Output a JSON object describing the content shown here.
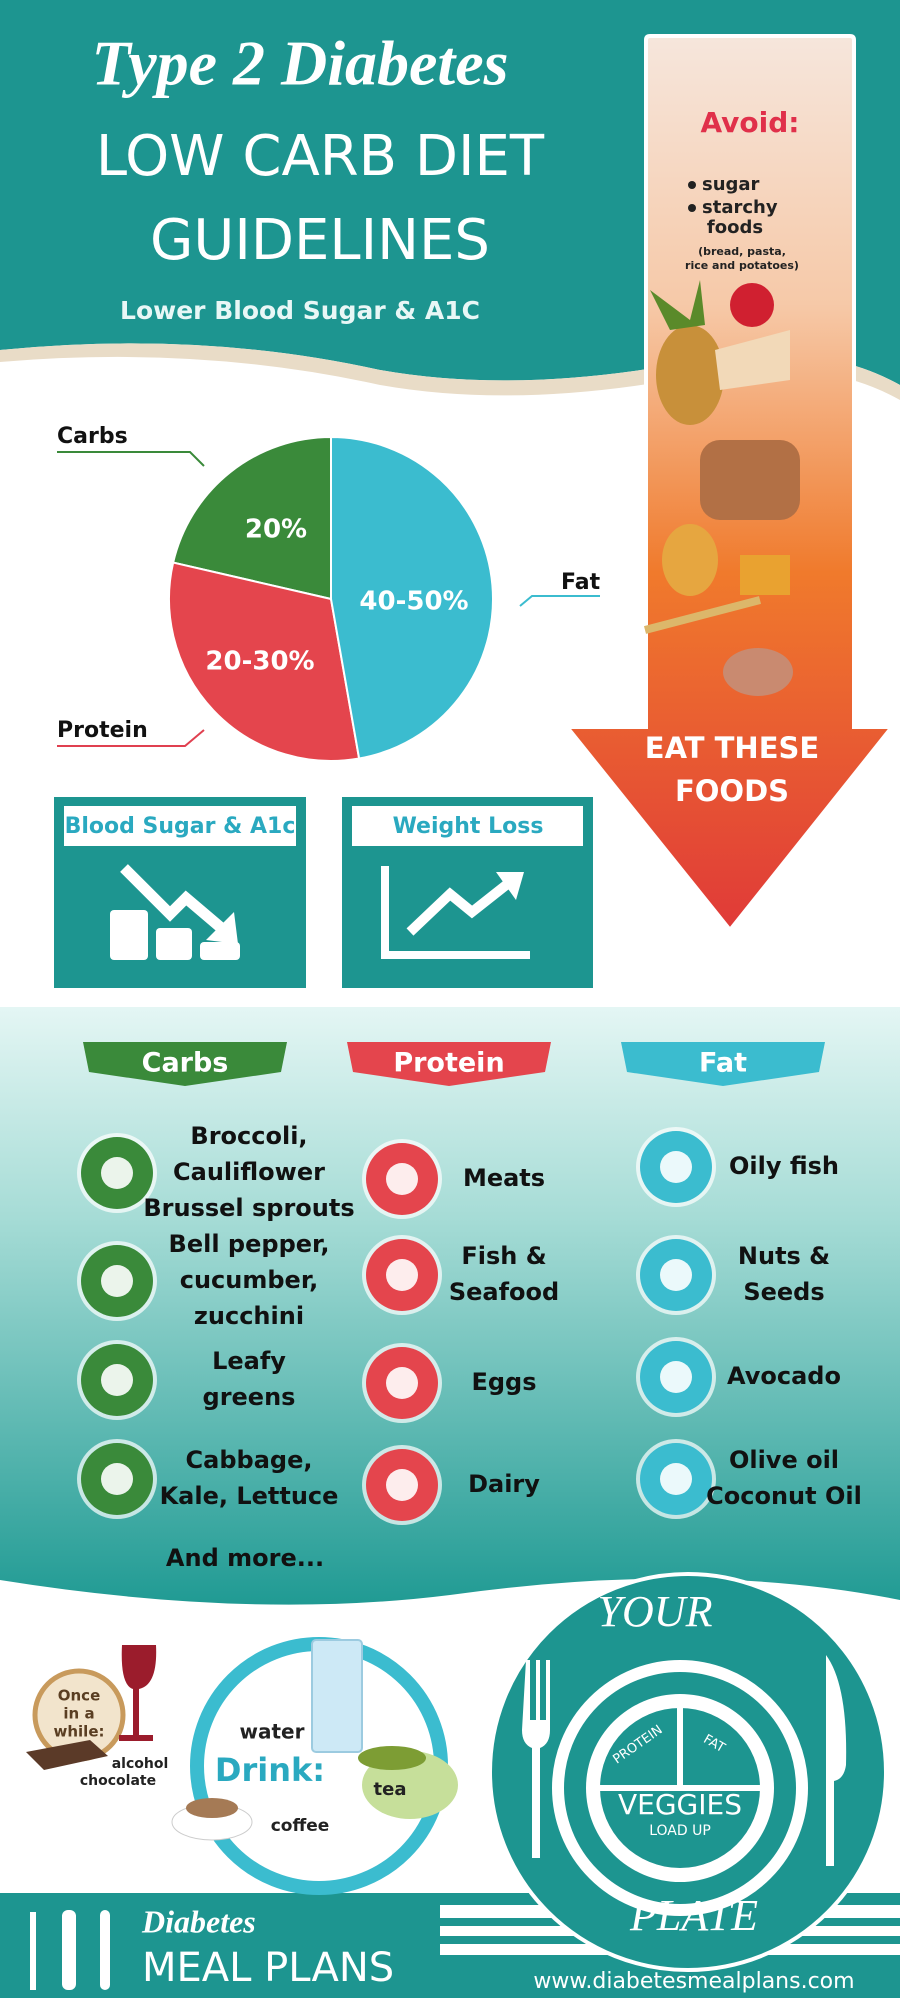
{
  "header": {
    "script_title": "Type 2 Diabetes",
    "title_lines": [
      "LOW CARB DIET",
      "GUIDELINES"
    ],
    "subtitle": "Lower Blood Sugar & A1C"
  },
  "avoid": {
    "heading": "Avoid:",
    "items": [
      [
        "sugar"
      ],
      [
        "starchy",
        "foods"
      ]
    ],
    "note_lines": [
      "(bread, pasta,",
      "rice and potatoes)"
    ],
    "cta_lines": [
      "EAT THESE",
      "FOODS"
    ]
  },
  "pie": {
    "slices": [
      {
        "name": "Carbs",
        "label": "20%"
      },
      {
        "name": "Protein",
        "label": "20-30%"
      },
      {
        "name": "Fat",
        "label": "40-50%"
      }
    ]
  },
  "benefits": [
    "Blood Sugar & A1c",
    "Weight Loss"
  ],
  "columns": [
    {
      "heading": "Carbs",
      "items": [
        [
          "Broccoli,",
          "Cauliflower",
          "Brussel sprouts"
        ],
        [
          "Bell pepper,",
          "cucumber,",
          "zucchini"
        ],
        [
          "Leafy",
          "greens"
        ],
        [
          "Cabbage,",
          "Kale, Lettuce"
        ]
      ]
    },
    {
      "heading": "Protein",
      "items": [
        [
          "Meats"
        ],
        [
          "Fish &",
          "Seafood"
        ],
        [
          "Eggs"
        ],
        [
          "Dairy"
        ]
      ]
    },
    {
      "heading": "Fat",
      "items": [
        [
          "Oily fish"
        ],
        [
          "Nuts &",
          "Seeds"
        ],
        [
          "Avocado"
        ],
        [
          "Olive oil",
          "Coconut Oil"
        ]
      ]
    }
  ],
  "carbs_more": "And more...",
  "drinks": {
    "occasional_lines": [
      "Once",
      "in a",
      "while:"
    ],
    "alcohol": "alcohol",
    "chocolate": "chocolate",
    "water": "water",
    "heading": "Drink:",
    "tea": "tea",
    "coffee": "coffee"
  },
  "plate": {
    "top": "YOUR",
    "bottom": "PLATE",
    "sections": [
      "PROTEIN",
      "FAT"
    ],
    "main": "VEGGIES",
    "main_note": "LOAD UP"
  },
  "footer": {
    "brand_script": "Diabetes",
    "brand": "MEAL PLANS",
    "url": "www.diabetesmealplans.com"
  }
}
